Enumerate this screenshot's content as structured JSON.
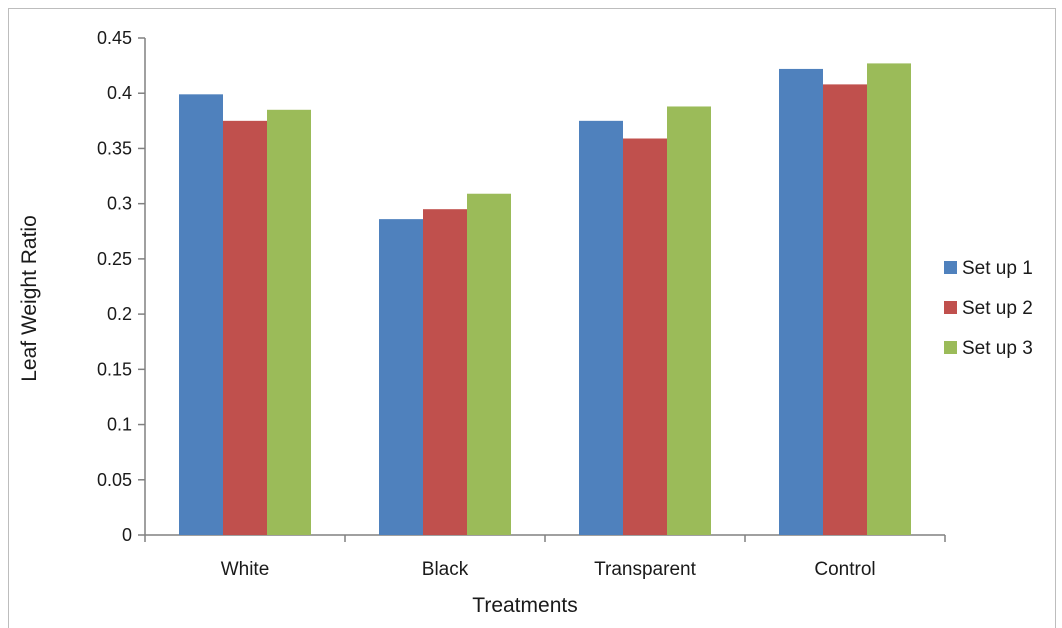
{
  "chart_data": {
    "type": "bar",
    "title": "",
    "xlabel": "Treatments",
    "ylabel": "Leaf Weight Ratio",
    "ylim": [
      0,
      0.45
    ],
    "ytick_labels": [
      "0",
      "0.05",
      "0.1",
      "0.15",
      "0.2",
      "0.25",
      "0.3",
      "0.35",
      "0.4",
      "0.45"
    ],
    "categories": [
      "White",
      "Black",
      "Transparent",
      "Control"
    ],
    "series": [
      {
        "name": "Set up 1",
        "color": "#4f81bd",
        "values": [
          0.399,
          0.286,
          0.375,
          0.422
        ]
      },
      {
        "name": "Set up 2",
        "color": "#c0504d",
        "values": [
          0.375,
          0.295,
          0.359,
          0.408
        ]
      },
      {
        "name": "Set up 3",
        "color": "#9bbb59",
        "values": [
          0.385,
          0.309,
          0.388,
          0.427
        ]
      }
    ],
    "grid": false,
    "legend_position": "right"
  }
}
